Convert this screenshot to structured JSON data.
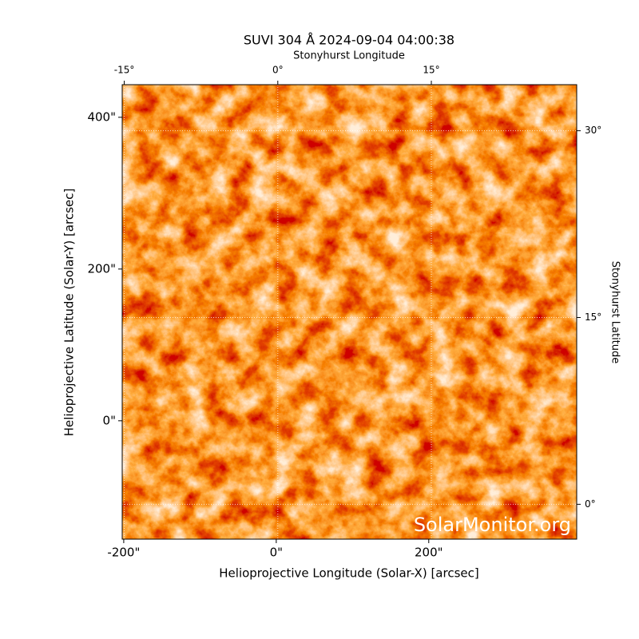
{
  "chart_data": {
    "type": "image",
    "title": "SUVI 304 Å 2024-09-04 04:00:38",
    "xlabel": "Helioprojective Longitude (Solar-X) [arcsec]",
    "ylabel": "Helioprojective Latitude (Solar-Y) [arcsec]",
    "x2label": "Stonyhurst Longitude",
    "y2label": "Stonyhurst Latitude",
    "watermark": "SolarMonitor.org",
    "xlim": [
      -202,
      394
    ],
    "ylim": [
      -156,
      443
    ],
    "xticks": [
      {
        "value": -200,
        "label": "-200\""
      },
      {
        "value": 0,
        "label": "0\""
      },
      {
        "value": 200,
        "label": "200\""
      }
    ],
    "yticks": [
      {
        "value": 0,
        "label": "0\""
      },
      {
        "value": 200,
        "label": "200\""
      },
      {
        "value": 400,
        "label": "400\""
      }
    ],
    "x2lim": [
      -15.2,
      29.2
    ],
    "x2ticks": [
      {
        "value": -15,
        "label": "-15°"
      },
      {
        "value": 0,
        "label": "0°"
      },
      {
        "value": 15,
        "label": "15°"
      }
    ],
    "y2lim": [
      -2.8,
      33.7
    ],
    "y2ticks": [
      {
        "value": 0,
        "label": "0°"
      },
      {
        "value": 15,
        "label": "15°"
      },
      {
        "value": 30,
        "label": "30°"
      }
    ],
    "grid": true
  }
}
